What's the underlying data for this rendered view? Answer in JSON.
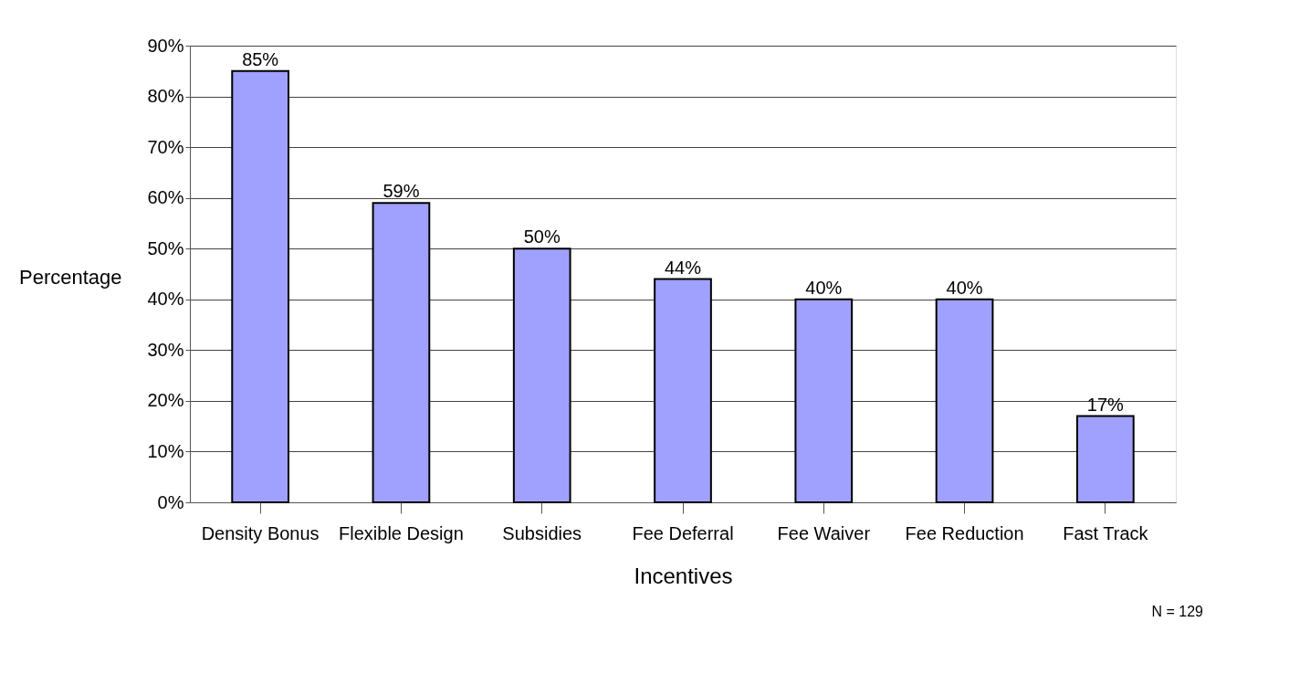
{
  "chart_data": {
    "type": "bar",
    "xlabel": "Incentives",
    "ylabel": "Percentage",
    "categories": [
      "Density Bonus",
      "Flexible Design",
      "Subsidies",
      "Fee Deferral",
      "Fee Waiver",
      "Fee Reduction",
      "Fast Track"
    ],
    "values": [
      85,
      59,
      50,
      44,
      40,
      40,
      17
    ],
    "value_labels": [
      "85%",
      "59%",
      "50%",
      "44%",
      "40%",
      "40%",
      "17%"
    ],
    "color": "#a0a0ff",
    "ylim": [
      0,
      90
    ],
    "yticks": [
      {
        "value": 0,
        "label": "0%"
      },
      {
        "value": 10,
        "label": "10%"
      },
      {
        "value": 20,
        "label": "20%"
      },
      {
        "value": 30,
        "label": "30%"
      },
      {
        "value": 40,
        "label": "40%"
      },
      {
        "value": 50,
        "label": "50%"
      },
      {
        "value": 60,
        "label": "60%"
      },
      {
        "value": 70,
        "label": "70%"
      },
      {
        "value": 80,
        "label": "80%"
      },
      {
        "value": 90,
        "label": "90%"
      }
    ],
    "grid": "y",
    "annotations": [
      "N = 129"
    ]
  }
}
